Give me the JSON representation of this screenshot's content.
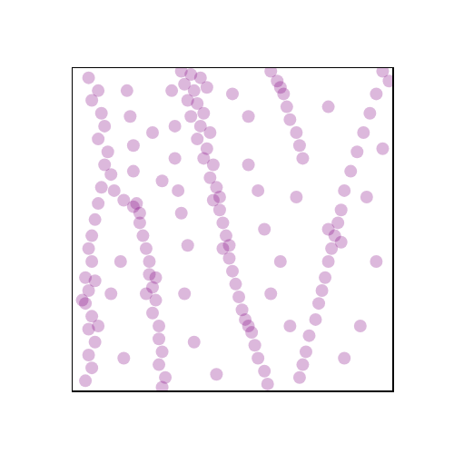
{
  "chart_data": {
    "type": "scatter",
    "color": "#800080",
    "marker": "circle",
    "grid": false,
    "tick_labels": false,
    "xlim": [
      0,
      1
    ],
    "ylim": [
      0,
      1
    ],
    "xticks": [],
    "yticks": [],
    "x": [
      0.05,
      0.08,
      0.06,
      0.09,
      0.1,
      0.08,
      0.11,
      0.1,
      0.12,
      0.09,
      0.08,
      0.07,
      0.06,
      0.05,
      0.06,
      0.04,
      0.05,
      0.04,
      0.06,
      0.05,
      0.07,
      0.05,
      0.06,
      0.04,
      0.08,
      0.03,
      0.07,
      0.13,
      0.16,
      0.19,
      0.21,
      0.2,
      0.21,
      0.22,
      0.23,
      0.24,
      0.24,
      0.25,
      0.26,
      0.25,
      0.27,
      0.27,
      0.28,
      0.27,
      0.29,
      0.28,
      0.26,
      0.23,
      0.34,
      0.37,
      0.4,
      0.35,
      0.38,
      0.42,
      0.36,
      0.39,
      0.41,
      0.37,
      0.4,
      0.43,
      0.39,
      0.42,
      0.41,
      0.44,
      0.43,
      0.45,
      0.44,
      0.46,
      0.47,
      0.48,
      0.47,
      0.49,
      0.5,
      0.51,
      0.52,
      0.53,
      0.54,
      0.56,
      0.57,
      0.58,
      0.6,
      0.61,
      0.46,
      0.49,
      0.55,
      0.62,
      0.64,
      0.66,
      0.67,
      0.68,
      0.7,
      0.71,
      0.72,
      0.65,
      0.97,
      0.99,
      0.95,
      0.93,
      0.91,
      0.89,
      0.87,
      0.85,
      0.84,
      0.83,
      0.82,
      0.81,
      0.8,
      0.79,
      0.78,
      0.77,
      0.76,
      0.74,
      0.73,
      0.72,
      0.71,
      0.84,
      0.8,
      0.17,
      0.18,
      0.19,
      0.19,
      0.31,
      0.32,
      0.32,
      0.33,
      0.34,
      0.15,
      0.35,
      0.38,
      0.45,
      0.55,
      0.6,
      0.65,
      0.68,
      0.9,
      0.95,
      0.92,
      0.55,
      0.25,
      0.12,
      0.85,
      0.62,
      0.7,
      0.28,
      0.16,
      0.5,
      0.8,
      0.97,
      0.58,
      0.36
    ],
    "values": [
      0.97,
      0.93,
      0.9,
      0.86,
      0.82,
      0.78,
      0.74,
      0.7,
      0.67,
      0.63,
      0.58,
      0.53,
      0.48,
      0.44,
      0.4,
      0.35,
      0.31,
      0.27,
      0.23,
      0.19,
      0.15,
      0.11,
      0.07,
      0.03,
      0.2,
      0.28,
      0.34,
      0.62,
      0.59,
      0.57,
      0.55,
      0.58,
      0.52,
      0.48,
      0.44,
      0.4,
      0.36,
      0.32,
      0.28,
      0.24,
      0.2,
      0.16,
      0.12,
      0.08,
      0.04,
      0.01,
      0.35,
      0.3,
      0.99,
      0.98,
      0.97,
      0.95,
      0.93,
      0.94,
      0.9,
      0.89,
      0.86,
      0.85,
      0.82,
      0.8,
      0.78,
      0.75,
      0.72,
      0.7,
      0.66,
      0.63,
      0.59,
      0.56,
      0.52,
      0.48,
      0.44,
      0.41,
      0.37,
      0.33,
      0.29,
      0.25,
      0.22,
      0.18,
      0.14,
      0.1,
      0.06,
      0.02,
      0.6,
      0.45,
      0.2,
      0.99,
      0.96,
      0.92,
      0.88,
      0.84,
      0.8,
      0.76,
      0.72,
      0.94,
      0.99,
      0.96,
      0.92,
      0.86,
      0.8,
      0.74,
      0.68,
      0.62,
      0.56,
      0.52,
      0.48,
      0.44,
      0.4,
      0.35,
      0.31,
      0.27,
      0.22,
      0.17,
      0.12,
      0.08,
      0.04,
      0.46,
      0.5,
      0.93,
      0.85,
      0.76,
      0.68,
      0.93,
      0.82,
      0.72,
      0.62,
      0.55,
      0.4,
      0.3,
      0.15,
      0.05,
      0.7,
      0.5,
      0.4,
      0.2,
      0.2,
      0.4,
      0.6,
      0.85,
      0.8,
      0.3,
      0.1,
      0.3,
      0.6,
      0.65,
      0.1,
      0.92,
      0.88,
      0.75,
      0.62,
      0.45
    ]
  }
}
